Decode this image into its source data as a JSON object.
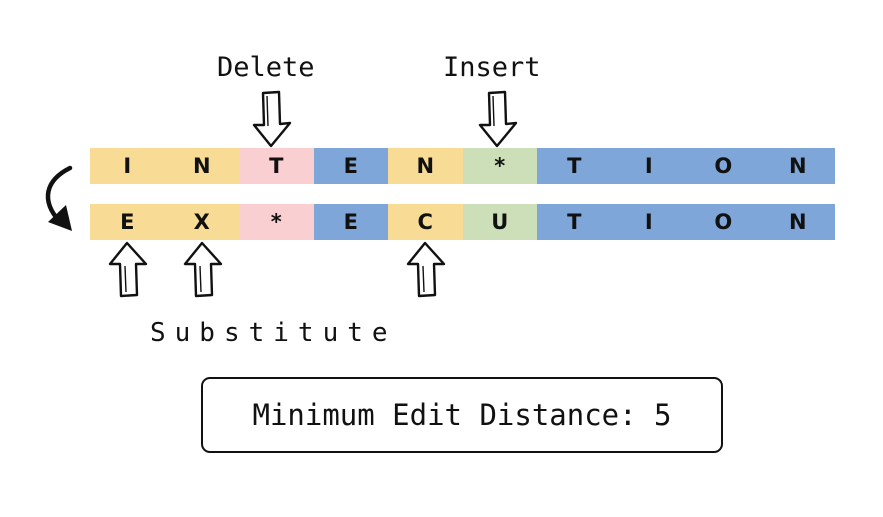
{
  "colors": {
    "yellow": "#f8dc95",
    "pink": "#f9cfd2",
    "blue": "#7fa6d9",
    "green": "#cddfb8"
  },
  "labels": {
    "delete": "Delete",
    "insert": "Insert",
    "substitute": "Substitute"
  },
  "top_row": [
    {
      "char": "I",
      "color": "yellow"
    },
    {
      "char": "N",
      "color": "yellow"
    },
    {
      "char": "T",
      "color": "pink"
    },
    {
      "char": "E",
      "color": "blue"
    },
    {
      "char": "N",
      "color": "yellow"
    },
    {
      "char": "*",
      "color": "green"
    },
    {
      "char": "T",
      "color": "blue"
    },
    {
      "char": "I",
      "color": "blue"
    },
    {
      "char": "O",
      "color": "blue"
    },
    {
      "char": "N",
      "color": "blue"
    }
  ],
  "bottom_row": [
    {
      "char": "E",
      "color": "yellow"
    },
    {
      "char": "X",
      "color": "yellow"
    },
    {
      "char": "*",
      "color": "pink"
    },
    {
      "char": "E",
      "color": "blue"
    },
    {
      "char": "C",
      "color": "yellow"
    },
    {
      "char": "U",
      "color": "green"
    },
    {
      "char": "T",
      "color": "blue"
    },
    {
      "char": "I",
      "color": "blue"
    },
    {
      "char": "O",
      "color": "blue"
    },
    {
      "char": "N",
      "color": "blue"
    }
  ],
  "result": {
    "text": "Minimum Edit Distance: 5"
  }
}
